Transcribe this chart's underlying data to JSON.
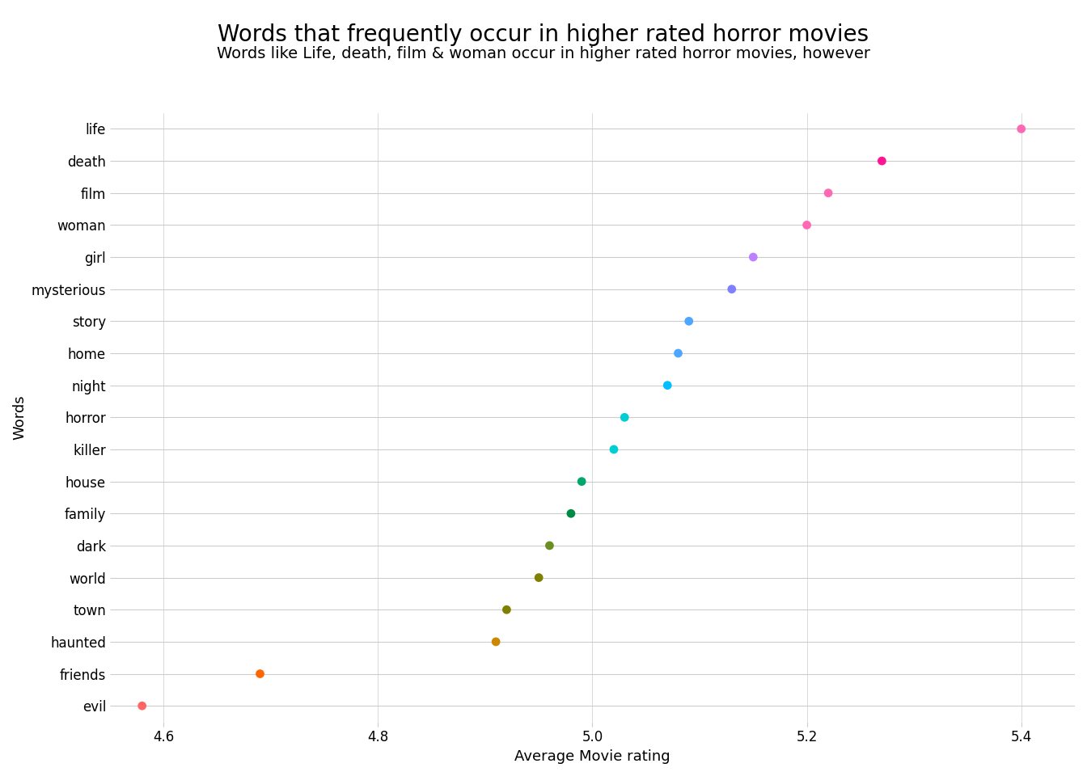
{
  "title": "Words that frequently occur in higher rated horror movies",
  "subtitle": "Words like Life, death, film & woman occur in higher rated horror movies, however",
  "xlabel": "Average Movie rating",
  "ylabel": "Words",
  "words": [
    "evil",
    "friends",
    "haunted",
    "town",
    "world",
    "dark",
    "family",
    "house",
    "killer",
    "horror",
    "night",
    "home",
    "story",
    "mysterious",
    "girl",
    "woman",
    "film",
    "death",
    "life"
  ],
  "values": [
    4.58,
    4.69,
    4.91,
    4.92,
    4.95,
    4.96,
    4.98,
    4.99,
    5.02,
    5.03,
    5.07,
    5.08,
    5.09,
    5.13,
    5.15,
    5.2,
    5.22,
    5.27,
    5.4
  ],
  "colors": [
    "#FF6666",
    "#FF6600",
    "#CC8800",
    "#808000",
    "#808000",
    "#6B8E23",
    "#008B45",
    "#00A86B",
    "#00CED1",
    "#00CED1",
    "#00BFFF",
    "#4DA6FF",
    "#4DA6FF",
    "#8080FF",
    "#BF80FF",
    "#FF69B4",
    "#FF69B4",
    "#FF1493",
    "#FF69B4"
  ],
  "xlim": [
    4.55,
    5.45
  ],
  "xticks": [
    4.6,
    4.8,
    5.0,
    5.2,
    5.4
  ],
  "background_color": "#FFFFFF",
  "grid_color": "#CCCCCC",
  "title_fontsize": 20,
  "subtitle_fontsize": 14,
  "xlabel_fontsize": 13,
  "ylabel_fontsize": 13,
  "tick_fontsize": 12,
  "marker_size": 60
}
